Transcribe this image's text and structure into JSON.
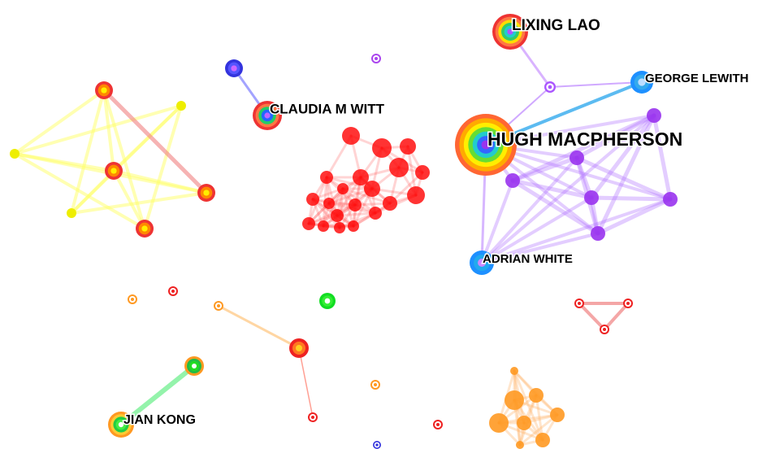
{
  "nodes": [
    {
      "label": "LIXING LAO"
    },
    {
      "label": "GEORGE LEWITH"
    },
    {
      "label": "CLAUDIA M WITT"
    },
    {
      "label": "HUGH MACPHERSON"
    },
    {
      "label": "ADRIAN WHITE"
    },
    {
      "label": "JIAN KONG"
    }
  ]
}
